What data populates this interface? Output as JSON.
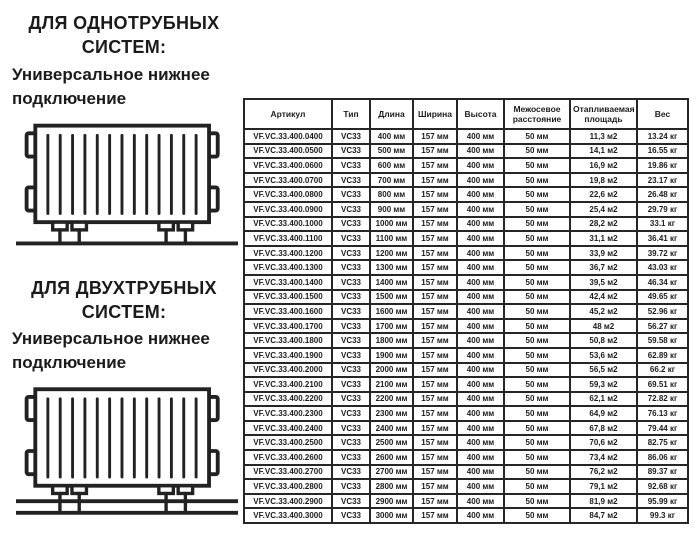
{
  "colors": {
    "ink": "#1c1c1c",
    "border": "#262626",
    "background": "#ffffff"
  },
  "sections": {
    "one_pipe": {
      "title_line1": "ДЛЯ ОДНОТРУБНЫХ",
      "title_line2": "СИСТЕМ:",
      "subtitle": "Универсальное нижнее подключение"
    },
    "two_pipe": {
      "title_line1": "ДЛЯ ДВУХТРУБНЫХ",
      "title_line2": "СИСТЕМ:",
      "subtitle": "Универсальное нижнее подключение"
    }
  },
  "table": {
    "columns": [
      "Артикул",
      "Тип",
      "Длина",
      "Ширина",
      "Высота",
      "Межосевое расстояние",
      "Отапливаемая площадь",
      "Вес"
    ],
    "rows": [
      [
        "VF.VC.33.400.0400",
        "VC33",
        "400 мм",
        "157 мм",
        "400 мм",
        "50 мм",
        "11,3 м2",
        "13.24 кг"
      ],
      [
        "VF.VC.33.400.0500",
        "VC33",
        "500 мм",
        "157 мм",
        "400 мм",
        "50 мм",
        "14,1 м2",
        "16.55 кг"
      ],
      [
        "VF.VC.33.400.0600",
        "VC33",
        "600 мм",
        "157 мм",
        "400 мм",
        "50 мм",
        "16,9 м2",
        "19.86 кг"
      ],
      [
        "VF.VC.33.400.0700",
        "VC33",
        "700 мм",
        "157 мм",
        "400 мм",
        "50 мм",
        "19,8 м2",
        "23.17 кг"
      ],
      [
        "VF.VC.33.400.0800",
        "VC33",
        "800 мм",
        "157 мм",
        "400 мм",
        "50 мм",
        "22,6 м2",
        "26.48 кг"
      ],
      [
        "VF.VC.33.400.0900",
        "VC33",
        "900 мм",
        "157 мм",
        "400 мм",
        "50 мм",
        "25,4 м2",
        "29.79 кг"
      ],
      [
        "VF.VC.33.400.1000",
        "VC33",
        "1000 мм",
        "157 мм",
        "400 мм",
        "50 мм",
        "28,2 м2",
        "33.1 кг"
      ],
      [
        "VF.VC.33.400.1100",
        "VC33",
        "1100 мм",
        "157 мм",
        "400 мм",
        "50 мм",
        "31,1 м2",
        "36.41 кг"
      ],
      [
        "VF.VC.33.400.1200",
        "VC33",
        "1200 мм",
        "157 мм",
        "400 мм",
        "50 мм",
        "33,9 м2",
        "39.72 кг"
      ],
      [
        "VF.VC.33.400.1300",
        "VC33",
        "1300 мм",
        "157 мм",
        "400 мм",
        "50 мм",
        "36,7 м2",
        "43.03 кг"
      ],
      [
        "VF.VC.33.400.1400",
        "VC33",
        "1400 мм",
        "157 мм",
        "400 мм",
        "50 мм",
        "39,5 м2",
        "46.34 кг"
      ],
      [
        "VF.VC.33.400.1500",
        "VC33",
        "1500 мм",
        "157 мм",
        "400 мм",
        "50 мм",
        "42,4 м2",
        "49.65 кг"
      ],
      [
        "VF.VC.33.400.1600",
        "VC33",
        "1600 мм",
        "157 мм",
        "400 мм",
        "50 мм",
        "45,2 м2",
        "52.96 кг"
      ],
      [
        "VF.VC.33.400.1700",
        "VC33",
        "1700 мм",
        "157 мм",
        "400 мм",
        "50 мм",
        "48 м2",
        "56.27 кг"
      ],
      [
        "VF.VC.33.400.1800",
        "VC33",
        "1800 мм",
        "157 мм",
        "400 мм",
        "50 мм",
        "50,8 м2",
        "59.58 кг"
      ],
      [
        "VF.VC.33.400.1900",
        "VC33",
        "1900 мм",
        "157 мм",
        "400 мм",
        "50 мм",
        "53,6 м2",
        "62.89 кг"
      ],
      [
        "VF.VC.33.400.2000",
        "VC33",
        "2000 мм",
        "157 мм",
        "400 мм",
        "50 мм",
        "56,5 м2",
        "66.2 кг"
      ],
      [
        "VF.VC.33.400.2100",
        "VC33",
        "2100 мм",
        "157 мм",
        "400 мм",
        "50 мм",
        "59,3 м2",
        "69.51 кг"
      ],
      [
        "VF.VC.33.400.2200",
        "VC33",
        "2200 мм",
        "157 мм",
        "400 мм",
        "50 мм",
        "62,1 м2",
        "72.82 кг"
      ],
      [
        "VF.VC.33.400.2300",
        "VC33",
        "2300 мм",
        "157 мм",
        "400 мм",
        "50 мм",
        "64,9 м2",
        "76.13 кг"
      ],
      [
        "VF.VC.33.400.2400",
        "VC33",
        "2400 мм",
        "157 мм",
        "400 мм",
        "50 мм",
        "67,8 м2",
        "79.44 кг"
      ],
      [
        "VF.VC.33.400.2500",
        "VC33",
        "2500 мм",
        "157 мм",
        "400 мм",
        "50 мм",
        "70,6 м2",
        "82.75 кг"
      ],
      [
        "VF.VC.33.400.2600",
        "VC33",
        "2600 мм",
        "157 мм",
        "400 мм",
        "50 мм",
        "73,4 м2",
        "86.06 кг"
      ],
      [
        "VF.VC.33.400.2700",
        "VC33",
        "2700 мм",
        "157 мм",
        "400 мм",
        "50 мм",
        "76,2 м2",
        "89.37 кг"
      ],
      [
        "VF.VC.33.400.2800",
        "VC33",
        "2800 мм",
        "157 мм",
        "400 мм",
        "50 мм",
        "79,1 м2",
        "92.68 кг"
      ],
      [
        "VF.VC.33.400.2900",
        "VC33",
        "2900 мм",
        "157 мм",
        "400 мм",
        "50 мм",
        "81,9 м2",
        "95.99 кг"
      ],
      [
        "VF.VC.33.400.3000",
        "VC33",
        "3000 мм",
        "157 мм",
        "400 мм",
        "50 мм",
        "84,7 м2",
        "99.3 кг"
      ]
    ]
  }
}
